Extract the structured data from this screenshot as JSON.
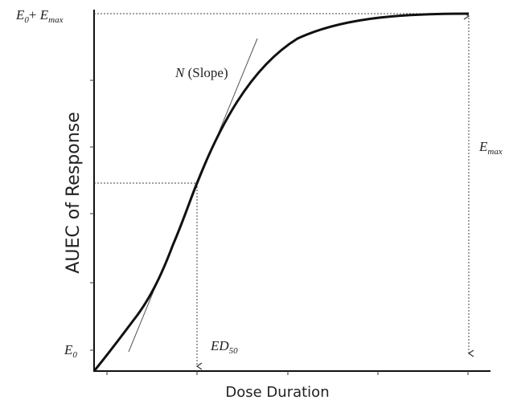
{
  "labels": {
    "top": {
      "symbol": "E",
      "sub": "0",
      "plus": "+ ",
      "symbol2": "E",
      "sub2": "max"
    },
    "emax": {
      "symbol": "E",
      "sub": "max"
    },
    "slope": {
      "symbol": "N",
      "text": " (Slope)"
    },
    "ed50": {
      "symbol": "ED",
      "sub": "50"
    },
    "e0": {
      "symbol": "E",
      "sub": "0"
    }
  },
  "y_axis_title": "AUEC of Response",
  "x_axis_title": "Dose Duration"
}
